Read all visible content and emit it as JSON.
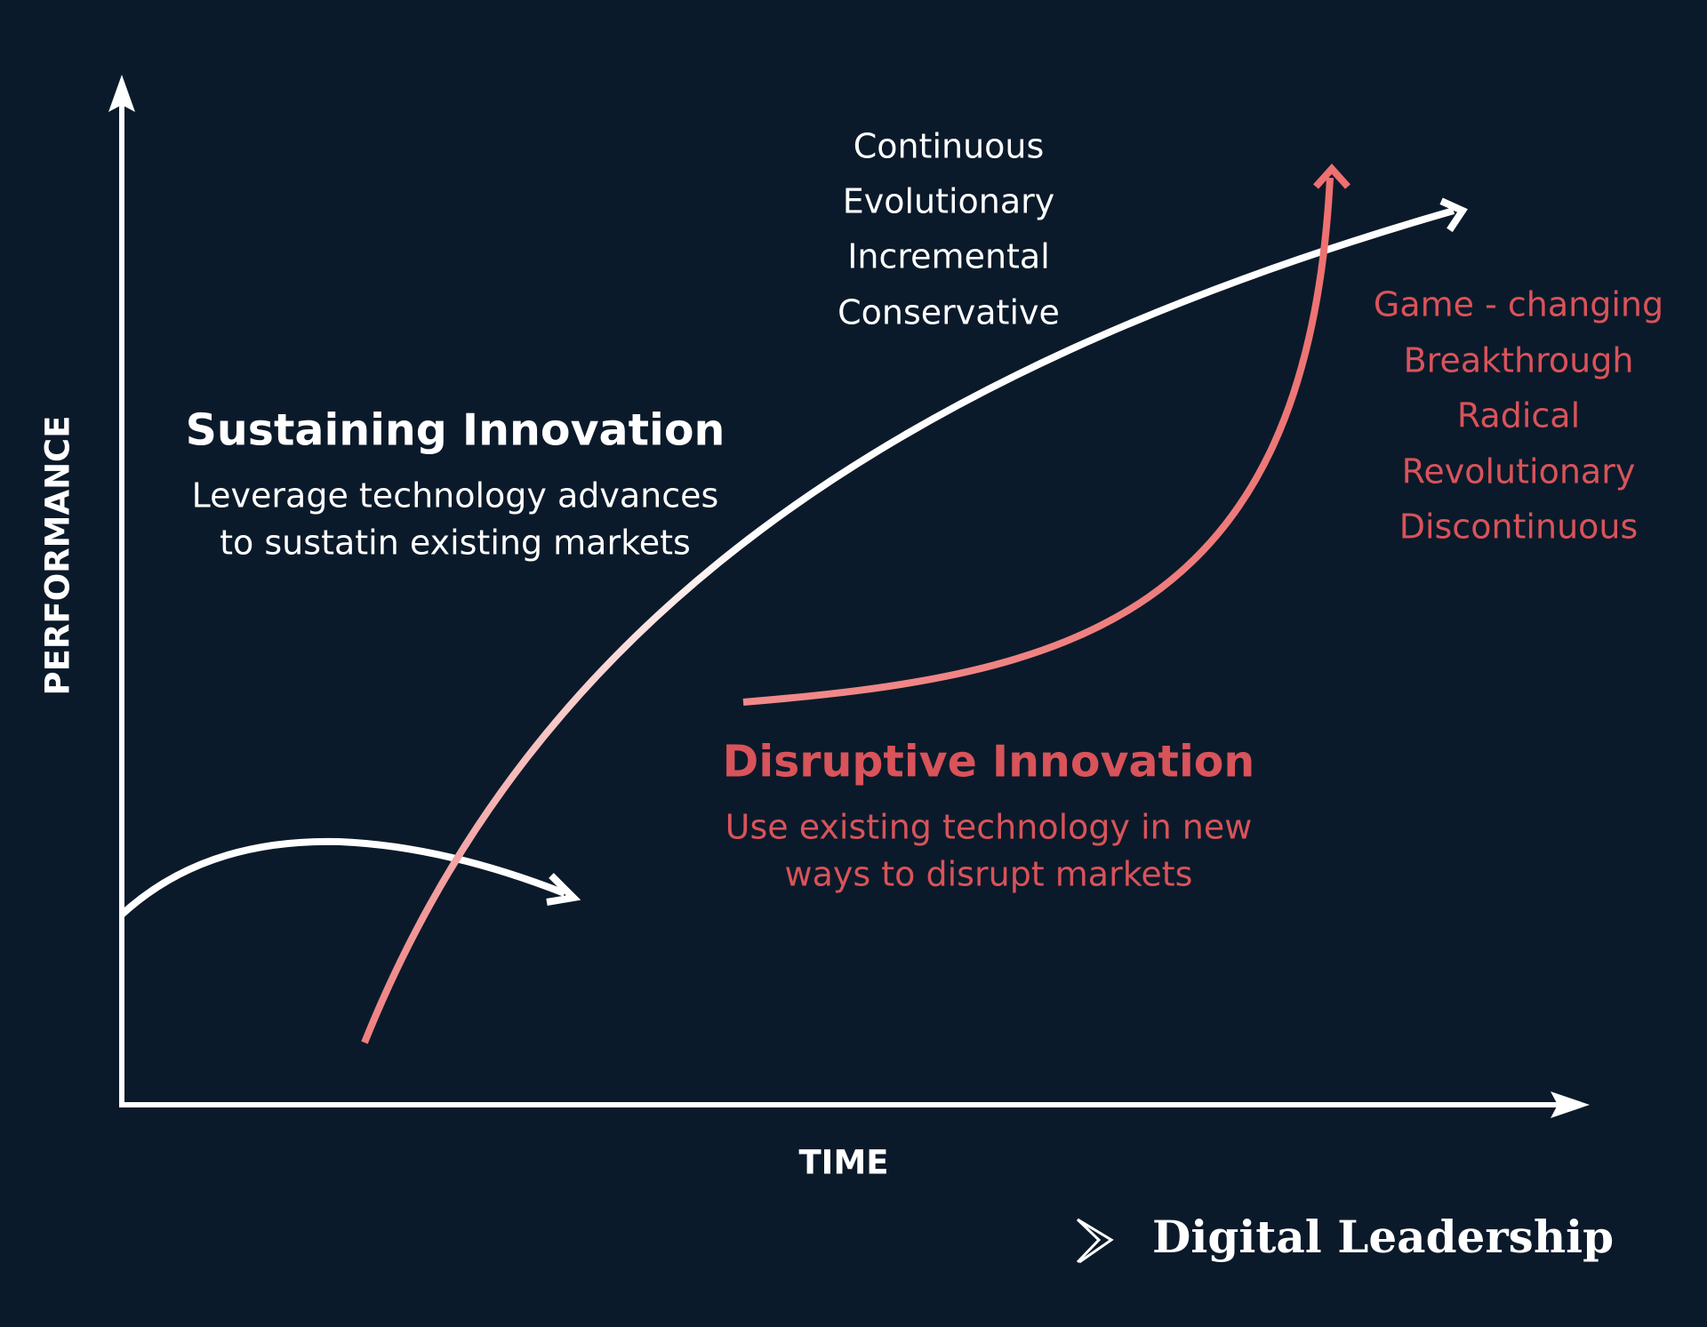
{
  "axes": {
    "y_label": "PERFORMANCE",
    "x_label": "TIME"
  },
  "sustaining": {
    "qualities": [
      "Continuous",
      "Evolutionary",
      "Incremental",
      "Conservative"
    ],
    "title": "Sustaining Innovation",
    "description": [
      "Leverage technology advances",
      "to sustatin existing markets"
    ]
  },
  "disruptive": {
    "qualities": [
      "Game - changing",
      "Breakthrough",
      "Radical",
      "Revolutionary",
      "Discontinuous"
    ],
    "title": "Disruptive Innovation",
    "description": [
      "Use existing technology in new",
      "ways to disrupt markets"
    ]
  },
  "brand": "Digital Leadership"
}
